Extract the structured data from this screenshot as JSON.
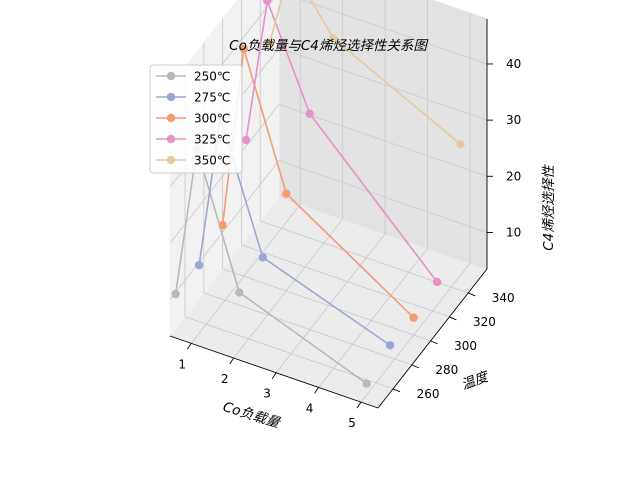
{
  "chart_data": {
    "type": "line",
    "projection": "3d",
    "title": "Co负载量与C4烯烃选择性关系图",
    "xlabel": "Co负载量",
    "ylabel": "温度",
    "zlabel": "C4烯烃选择性",
    "x_ticks": [
      "1",
      "2",
      "3",
      "4",
      "5"
    ],
    "y_ticks": [
      "260",
      "280",
      "300",
      "320",
      "340"
    ],
    "z_ticks": [
      "10",
      "20",
      "30",
      "40"
    ],
    "xlim": [
      0.5,
      5.4
    ],
    "ylim": [
      244,
      360
    ],
    "zlim": [
      3.5,
      48
    ],
    "grid": true,
    "legend_position": "top-left",
    "series": [
      {
        "name": "250℃",
        "color": "#b8b8b8",
        "y": 250,
        "points": [
          [
            0.5,
            9.7
          ],
          [
            1.0,
            36.9
          ],
          [
            2.0,
            13.9
          ],
          [
            5.0,
            5.5
          ]
        ]
      },
      {
        "name": "275℃",
        "color": "#9aa7d4",
        "y": 275,
        "points": [
          [
            0.5,
            9.5
          ],
          [
            1.0,
            37.1
          ],
          [
            2.0,
            14.8
          ],
          [
            5.0,
            7.0
          ]
        ]
      },
      {
        "name": "300℃",
        "color": "#f59b75",
        "y": 300,
        "points": [
          [
            0.5,
            11.3
          ],
          [
            1.0,
            44.0
          ],
          [
            2.0,
            20.8
          ],
          [
            5.0,
            6.6
          ]
        ]
      },
      {
        "name": "325℃",
        "color": "#e692c9",
        "y": 325,
        "points": [
          [
            0.5,
            21.1
          ],
          [
            1.0,
            47.2
          ],
          [
            2.0,
            29.7
          ],
          [
            5.0,
            7.6
          ]
        ]
      },
      {
        "name": "350℃",
        "color": "#e6c89d",
        "y": 350,
        "points": [
          [
            0.5,
            33.0
          ],
          [
            1.0,
            48.2
          ],
          [
            2.0,
            37.8
          ],
          [
            5.0,
            26.8
          ]
        ]
      }
    ]
  }
}
